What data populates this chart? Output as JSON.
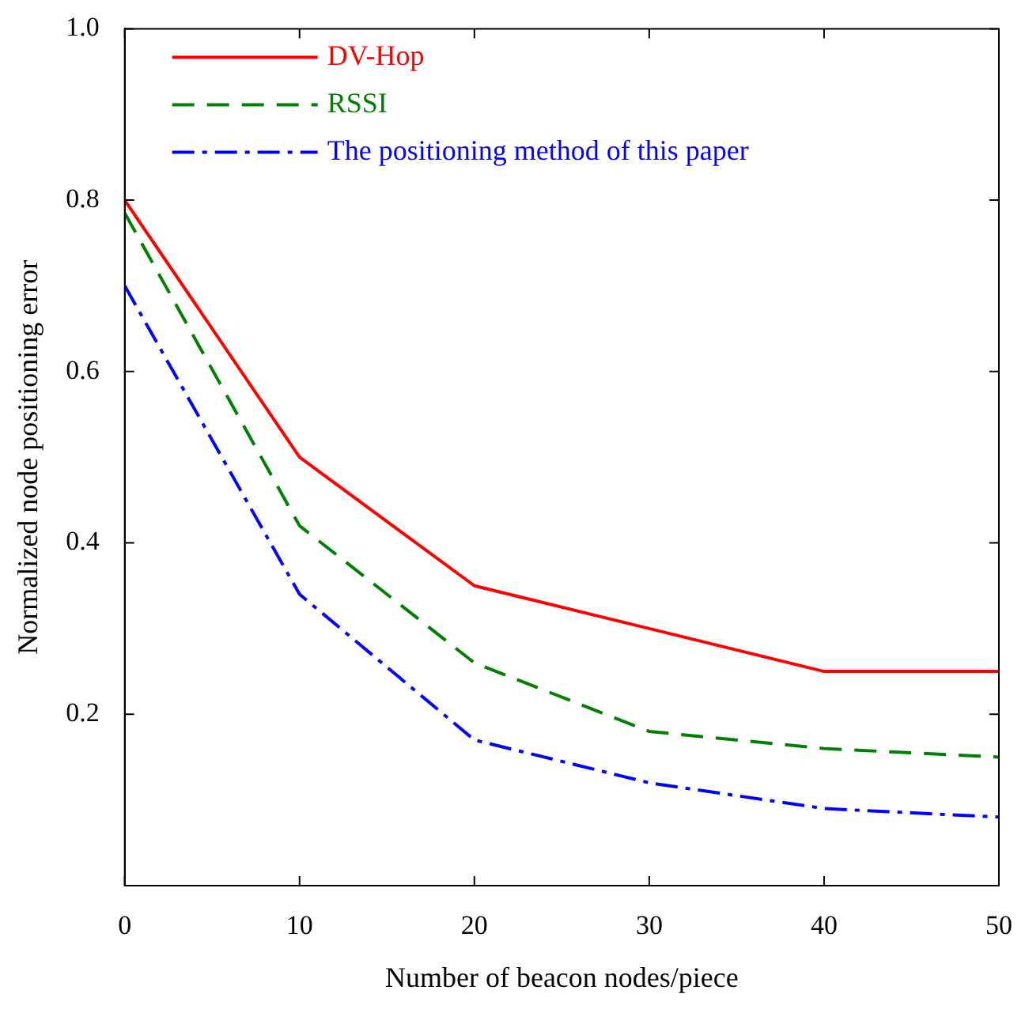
{
  "chart_data": {
    "type": "line",
    "xlabel": "Number of beacon nodes/piece",
    "ylabel": "Normalized node positioning error",
    "x": [
      0,
      10,
      20,
      30,
      40,
      50
    ],
    "series": [
      {
        "name": "DV-Hop",
        "color": "#ff0000",
        "line_style": "solid",
        "values": [
          0.8,
          0.5,
          0.35,
          0.3,
          0.25,
          0.25
        ]
      },
      {
        "name": "RSSI",
        "color": "#008000",
        "line_style": "dashed",
        "values": [
          0.785,
          0.42,
          0.26,
          0.18,
          0.16,
          0.15
        ]
      },
      {
        "name": "The positioning method of this paper",
        "color": "#0000ff",
        "line_style": "dashdot",
        "values": [
          0.7,
          0.34,
          0.17,
          0.12,
          0.09,
          0.08
        ]
      }
    ],
    "xlim": [
      0,
      50
    ],
    "xticks": [
      0,
      10,
      20,
      30,
      40,
      50
    ],
    "ylim": [
      0,
      1
    ],
    "yticks": [
      {
        "value": 0,
        "label": null
      },
      {
        "value": 0.2,
        "label": "0.2"
      },
      {
        "value": 0.4,
        "label": "0.4"
      },
      {
        "value": 0.6,
        "label": "0.6"
      },
      {
        "value": 0.8,
        "label": "0.8"
      },
      {
        "value": 1,
        "label": "1.0"
      }
    ],
    "grid": false,
    "legend": "top left",
    "marker": "none"
  }
}
